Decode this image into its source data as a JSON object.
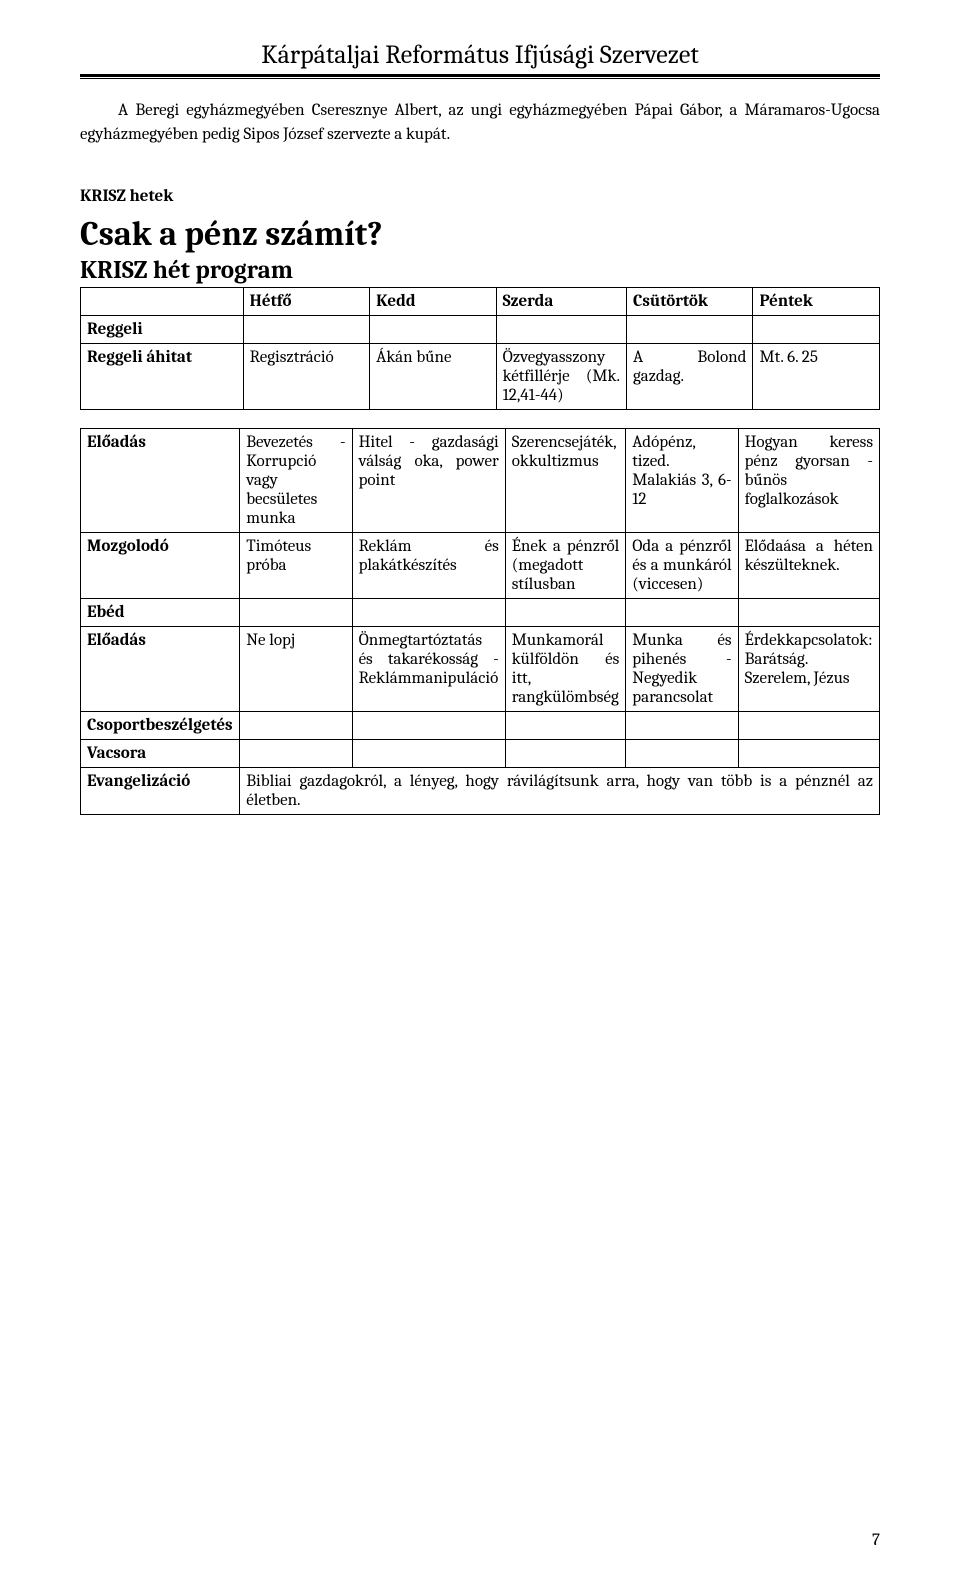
{
  "header": {
    "title": "Kárpátaljai Református Ifjúsági Szervezet"
  },
  "intro": "A Beregi egyházmegyében Cseresznye Albert, az ungi egyházmegyében Pápai Gábor, a Máramaros-Ugocsa egyházmegyében pedig Sipos József szervezte a kupát.",
  "section_label": "KRISZ hetek",
  "big_title": "Csak a pénz számít?",
  "sub_title": "KRISZ hét program",
  "days": {
    "mon": "Hétfő",
    "tue": "Kedd",
    "wed": "Szerda",
    "thu": "Csütörtök",
    "fri": "Péntek"
  },
  "rows": {
    "reggeli": "Reggeli",
    "reggeli_ahitat": {
      "label": "Reggeli áhitat",
      "mon": "Regisztráció",
      "tue": "Ákán bűne",
      "wed": "Özvegyasszony kétfillérje (Mk. 12,41-44)",
      "thu": "A Bolond gazdag.",
      "fri": "Mt. 6. 25"
    },
    "eloadas1": {
      "label": "Előadás",
      "mon": "Bevezetés - Korrupció vagy becsületes munka",
      "tue": "Hitel - gazdasági válság oka, power point",
      "wed": "Szerencsejáték, okkultizmus",
      "thu": "Adópénz, tized. Malakiás 3, 6-12",
      "fri": "Hogyan keress pénz gyorsan - bűnös foglalkozások"
    },
    "mozgolodo": {
      "label": "Mozgolodó",
      "mon": "Timóteus próba",
      "tue": "Reklám és plakátkészítés",
      "wed": "Ének a pénzről (megadott stílusban",
      "thu": "Oda a pénzről és a munkáról (viccesen)",
      "fri": "Elődaása a héten készülteknek."
    },
    "ebed": "Ebéd",
    "eloadas2": {
      "label": "Előadás",
      "mon": "Ne lopj",
      "tue": "Önmegtartóztatás és takarékosság - Reklámmanipuláció",
      "wed": "Munkamorál külföldön és itt, rangkülömbség",
      "thu": "Munka és pihenés - Negyedik parancsolat",
      "fri": "Érdekkapcsolatok: Barátság. Szerelem, Jézus"
    },
    "csoport": "Csoportbeszélgetés",
    "vacsora": "Vacsora",
    "evangelizacio": {
      "label": "Evangelizáció",
      "text": "Bibliai gazdagokról, a lényeg, hogy rávilágítsunk arra, hogy van több is a pénznél az életben."
    }
  },
  "page_number": "7"
}
